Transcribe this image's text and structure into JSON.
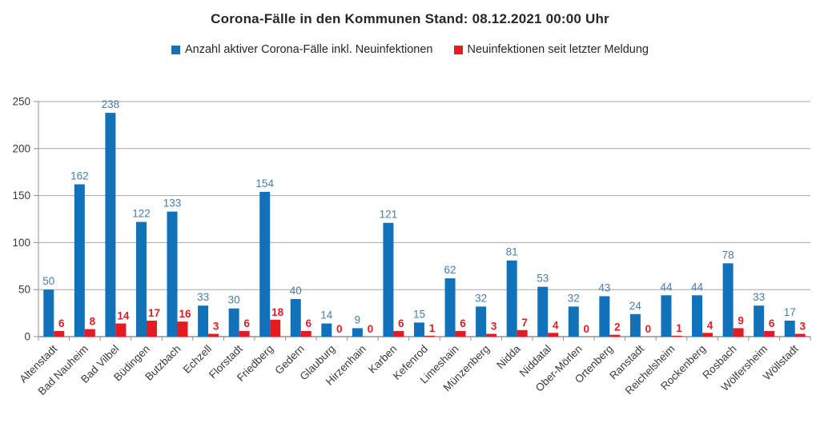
{
  "title": "Corona-Fälle in den Kommunen Stand: 08.12.2021 00:00 Uhr",
  "legend": [
    {
      "label": "Anzahl aktiver Corona-Fälle inkl. Neuinfektionen",
      "color": "#1272B9"
    },
    {
      "label": "Neuinfektionen seit letzter Meldung",
      "color": "#E21C22"
    }
  ],
  "chart_data": {
    "type": "bar",
    "title": "Corona-Fälle in den Kommunen Stand: 08.12.2021 00:00 Uhr",
    "categories": [
      "Altenstadt",
      "Bad Nauheim",
      "Bad Vilbel",
      "Büdingen",
      "Butzbach",
      "Echzell",
      "Florstadt",
      "Friedberg",
      "Gedern",
      "Glauburg",
      "Hirzenhain",
      "Karben",
      "Kefenrod",
      "Limeshain",
      "Münzenberg",
      "Nidda",
      "Niddatal",
      "Ober-Mörlen",
      "Ortenberg",
      "Ranstadt",
      "Reichelsheim",
      "Rockenberg",
      "Rosbach",
      "Wölfersheim",
      "Wöllstadt"
    ],
    "series": [
      {
        "name": "Anzahl aktiver Corona-Fälle inkl. Neuinfektionen",
        "color": "#1272B9",
        "label_color": "#4A7CAA",
        "label_bold": false,
        "values": [
          50,
          162,
          238,
          122,
          133,
          33,
          30,
          154,
          40,
          14,
          9,
          121,
          15,
          62,
          32,
          81,
          53,
          32,
          43,
          24,
          44,
          44,
          78,
          33,
          17
        ]
      },
      {
        "name": "Neuinfektionen seit letzter Meldung",
        "color": "#E21C22",
        "label_color": "#E21C22",
        "label_bold": true,
        "values": [
          6,
          8,
          14,
          17,
          16,
          3,
          6,
          18,
          6,
          0,
          0,
          6,
          1,
          6,
          3,
          7,
          4,
          0,
          2,
          0,
          1,
          4,
          9,
          6,
          3
        ]
      }
    ],
    "xlabel": "",
    "ylabel": "",
    "ylim": [
      0,
      250
    ],
    "ytick_step": 50,
    "yticks": [
      0,
      50,
      100,
      150,
      200,
      250
    ],
    "grid": true,
    "legend_position": "top",
    "data_labels": true,
    "axis_color": "#8F8F8F",
    "grid_color": "#A6A6A6",
    "tick_label_color": "#3A3A3A"
  }
}
